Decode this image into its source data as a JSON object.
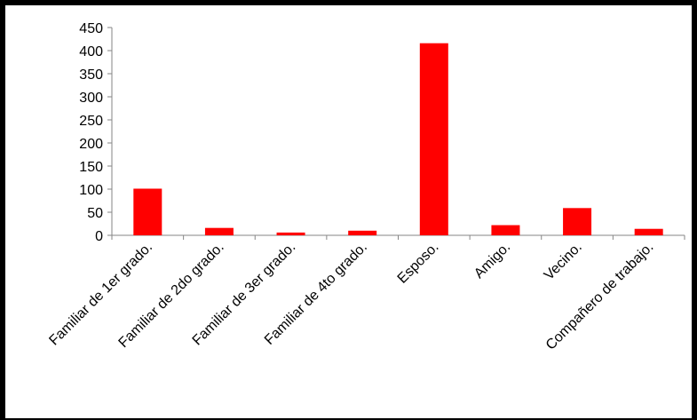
{
  "colors": {
    "bar": "#ff0000",
    "axis": "#868686",
    "frame": "#000000"
  },
  "chart_data": {
    "type": "bar",
    "title": "",
    "xlabel": "",
    "ylabel": "",
    "categories": [
      "Familiar de 1er grado.",
      "Familiar de 2do grado.",
      "Familiar de 3er grado.",
      "Familiar de 4to grado.",
      "Esposo.",
      "Amigo.",
      "Vecino.",
      "Compañero de trabajo."
    ],
    "values": [
      101,
      16,
      6,
      10,
      416,
      22,
      59,
      14
    ],
    "ylim": [
      0,
      450
    ],
    "yticks": [
      0,
      50,
      100,
      150,
      200,
      250,
      300,
      350,
      400,
      450
    ],
    "grid": false,
    "legend": "none"
  }
}
